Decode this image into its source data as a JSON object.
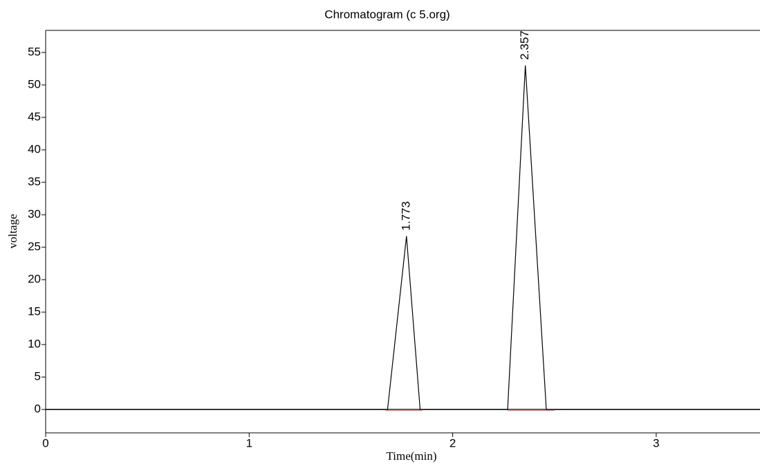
{
  "chart_data": {
    "type": "line",
    "title": "Chromatogram (c 5.org)",
    "x_label": "Time(min)",
    "y_label": "voltage",
    "x": [
      0,
      1.68,
      1.773,
      1.84,
      2.27,
      2.357,
      2.46,
      3.51
    ],
    "series": [
      {
        "color": "#000000",
        "values": [
          0,
          0,
          26.7,
          0,
          0,
          53,
          0,
          0
        ]
      }
    ],
    "annotations": [
      {
        "x": 1.773,
        "y": 26.7,
        "text": "1.773"
      },
      {
        "x": 2.357,
        "y": 53,
        "text": "2.357"
      }
    ],
    "peak_baselines": [
      {
        "start": 1.67,
        "end": 1.85
      },
      {
        "start": 2.27,
        "end": 2.5
      }
    ],
    "baseline_color": "#e07070",
    "xlim": [
      0,
      3.51
    ],
    "ylim": [
      -3.6,
      58.4
    ],
    "xticks": [
      0,
      1,
      2,
      3
    ],
    "yticks": [
      0,
      5,
      10,
      15,
      20,
      25,
      30,
      35,
      40,
      45,
      50,
      55
    ]
  }
}
